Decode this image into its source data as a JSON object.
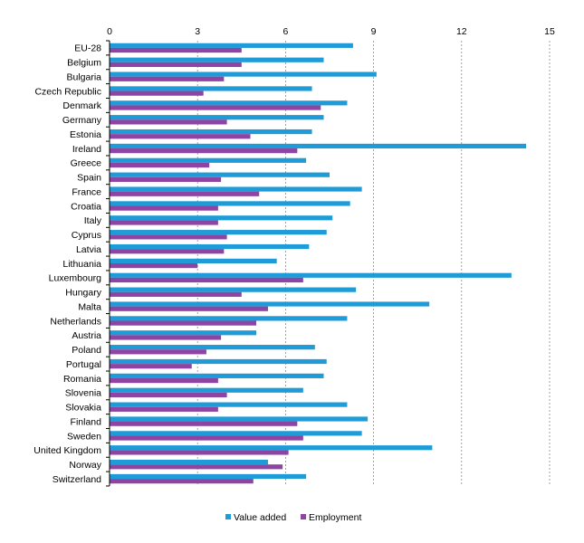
{
  "chart_data": {
    "type": "bar",
    "orientation": "horizontal",
    "title": "",
    "xlabel": "",
    "ylabel": "",
    "xlim": [
      0,
      15
    ],
    "x_ticks": [
      0,
      3,
      6,
      9,
      12,
      15
    ],
    "x_tick_labels": [
      "0",
      "3",
      "6",
      "9",
      "12",
      "15"
    ],
    "x_axis_position": "top",
    "grid": "vertical dashed",
    "legend_position": "bottom",
    "categories": [
      "EU-28",
      "Belgium",
      "Bulgaria",
      "Czech Republic",
      "Denmark",
      "Germany",
      "Estonia",
      "Ireland",
      "Greece",
      "Spain",
      "France",
      "Croatia",
      "Italy",
      "Cyprus",
      "Latvia",
      "Lithuania",
      "Luxembourg",
      "Hungary",
      "Malta",
      "Netherlands",
      "Austria",
      "Poland",
      "Portugal",
      "Romania",
      "Slovenia",
      "Slovakia",
      "Finland",
      "Sweden",
      "United Kingdom",
      "Norway",
      "Switzerland"
    ],
    "series": [
      {
        "name": "Value added",
        "color": "#1f9bd7",
        "values": [
          8.3,
          7.3,
          9.1,
          6.9,
          8.1,
          7.3,
          6.9,
          14.2,
          6.7,
          7.5,
          8.6,
          8.2,
          7.6,
          7.4,
          6.8,
          5.7,
          13.7,
          8.4,
          10.9,
          8.1,
          5.0,
          7.0,
          7.4,
          7.3,
          6.6,
          8.1,
          8.8,
          8.6,
          11.0,
          5.4,
          6.7
        ]
      },
      {
        "name": "Employment",
        "color": "#8e44a2",
        "values": [
          4.5,
          4.5,
          3.9,
          3.2,
          7.2,
          4.0,
          4.8,
          6.4,
          3.4,
          3.8,
          5.1,
          3.7,
          3.7,
          4.0,
          3.9,
          3.0,
          6.6,
          4.5,
          5.4,
          5.0,
          3.8,
          3.3,
          2.8,
          3.7,
          4.0,
          3.7,
          6.4,
          6.6,
          6.1,
          5.9,
          4.9
        ]
      }
    ]
  }
}
